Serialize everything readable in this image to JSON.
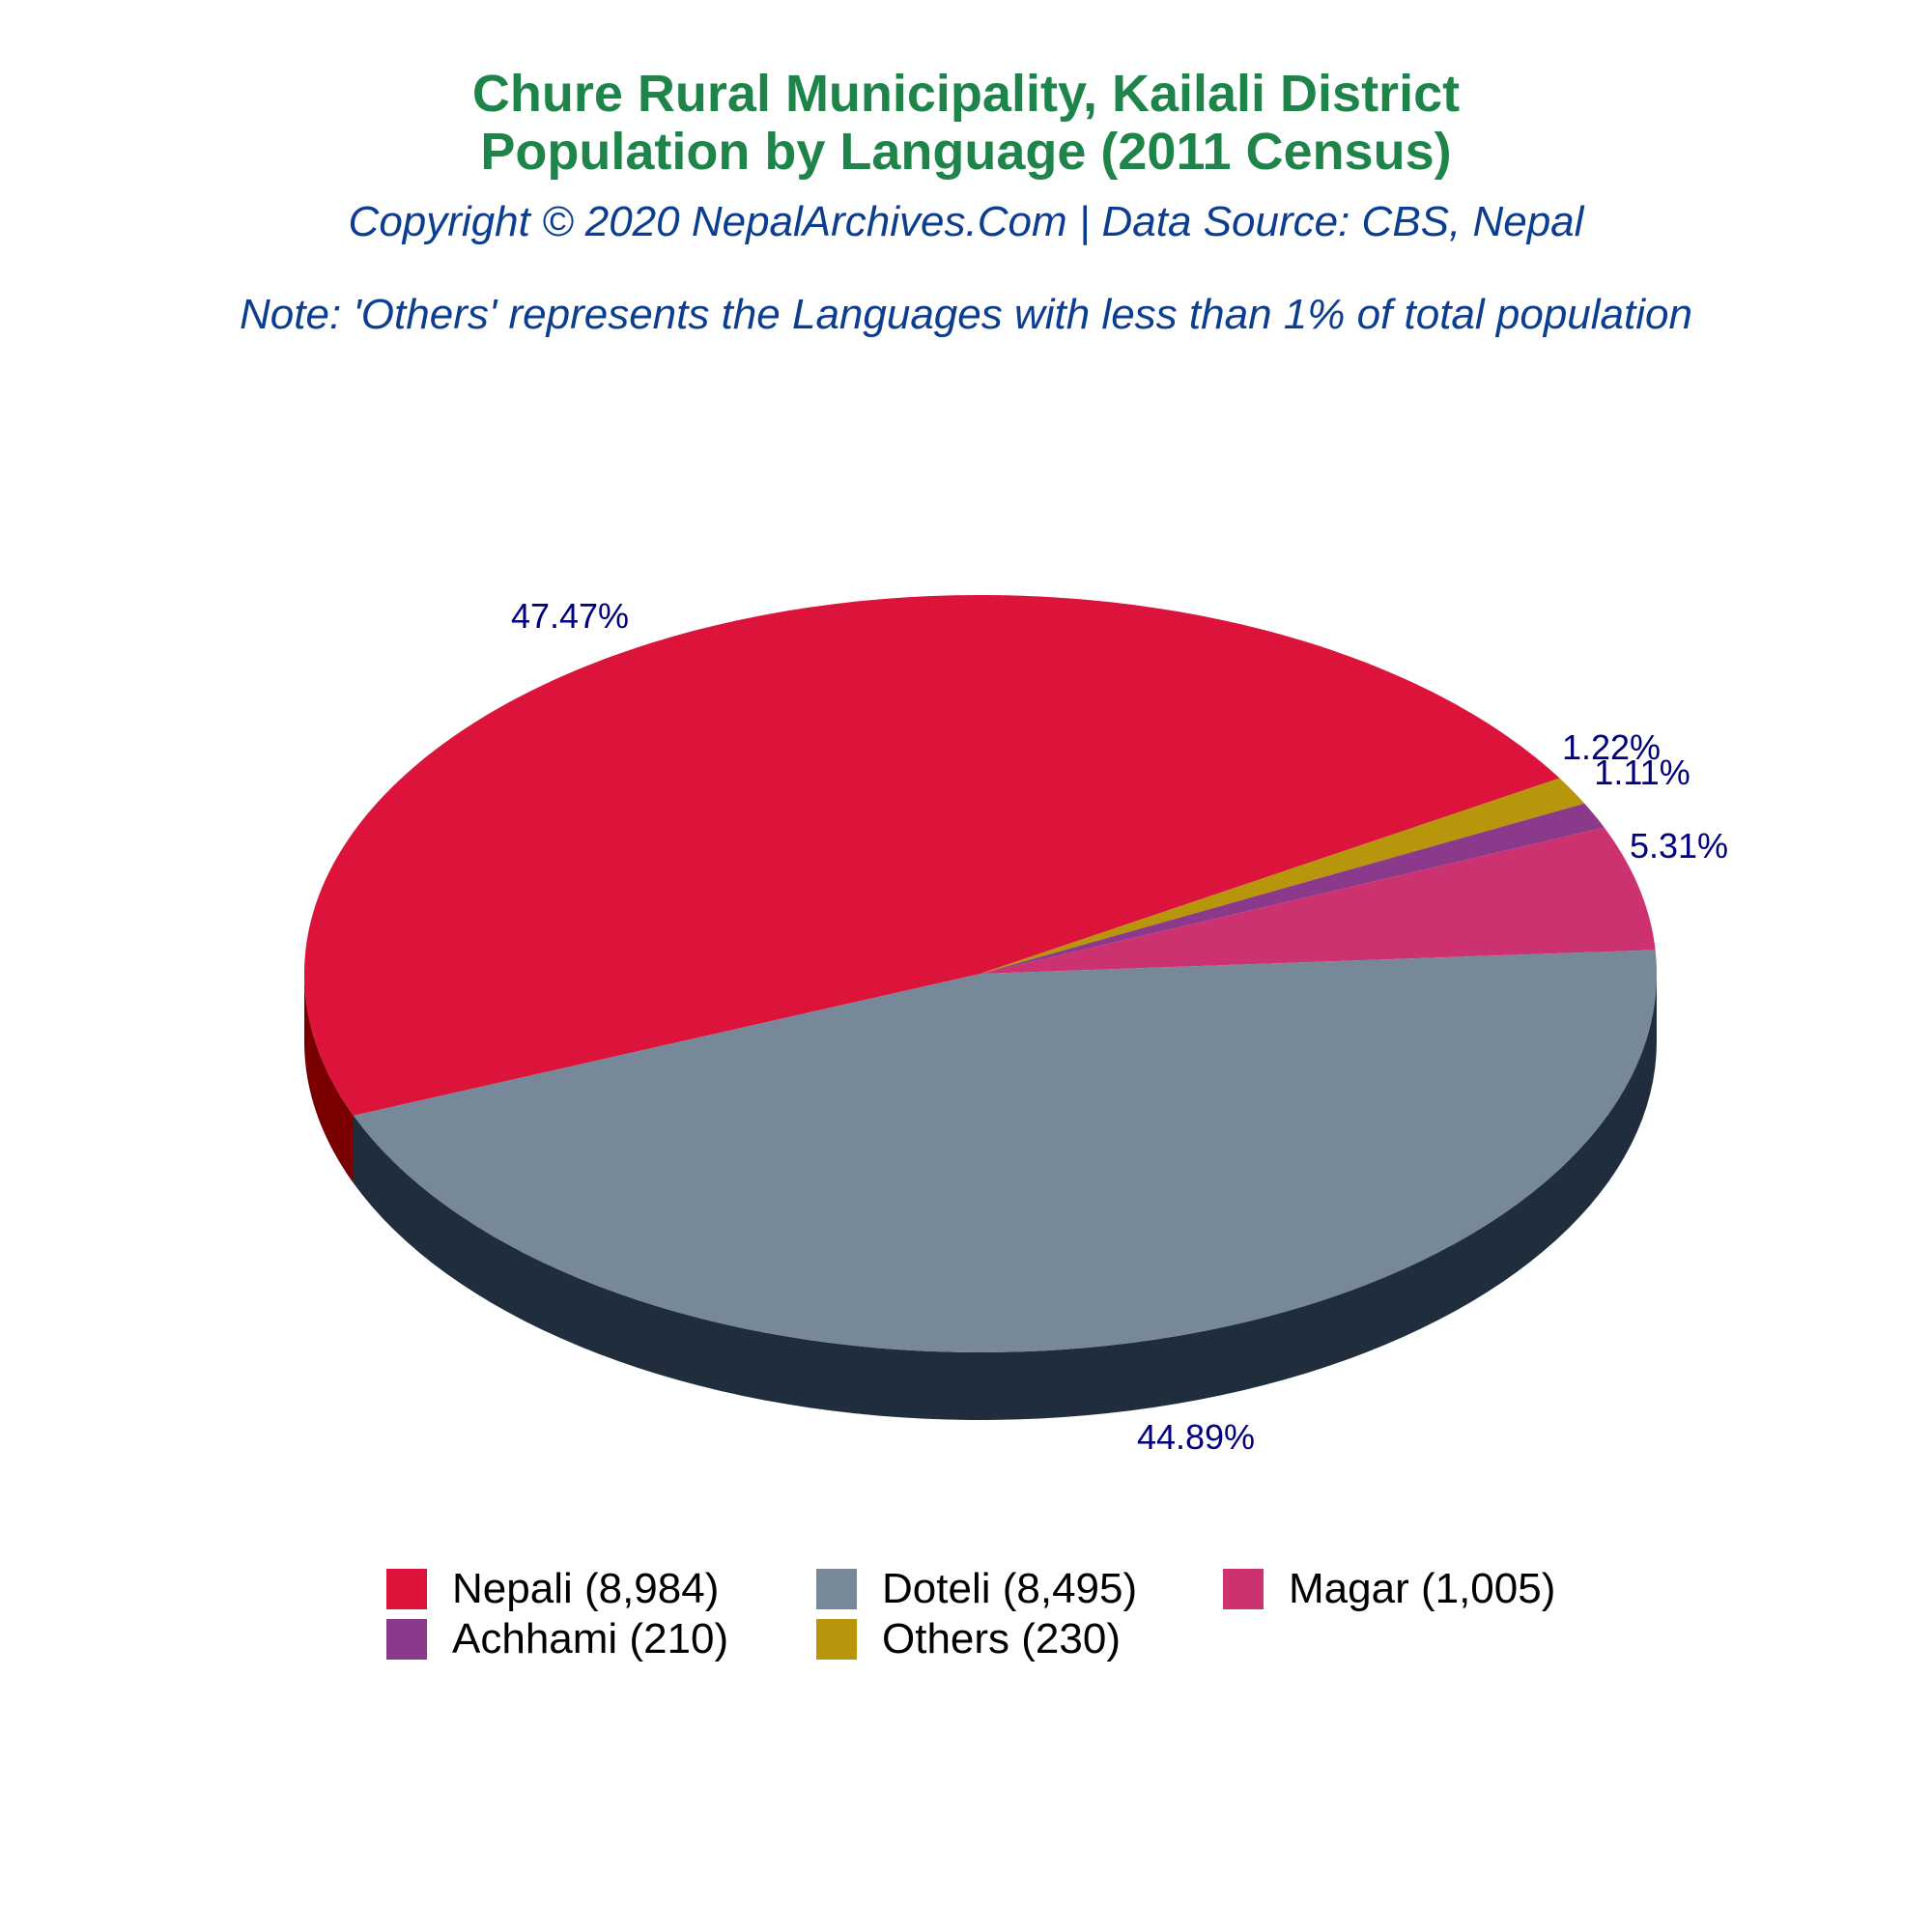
{
  "title_line1": "Chure Rural Municipality, Kailali District",
  "title_line2": "Population by Language (2011 Census)",
  "subtitle": "Copyright © 2020 NepalArchives.Com | Data Source: CBS, Nepal",
  "note": "Note: 'Others' represents the Languages with less than 1% of total population",
  "chart_data": {
    "type": "pie",
    "style": "3d-tilted",
    "categories": [
      "Nepali",
      "Doteli",
      "Magar",
      "Achhami",
      "Others"
    ],
    "values": [
      8984,
      8495,
      1005,
      210,
      230
    ],
    "percent_labels": [
      "47.47%",
      "44.89%",
      "5.31%",
      "1.11%",
      "1.22%"
    ],
    "colors": [
      "#dc143c",
      "#778899",
      "#cc3170",
      "#8b3a8b",
      "#b8960c"
    ],
    "side_colors": [
      "#7a0000",
      "#1f2d3d",
      "#7a1d44",
      "#4e1f4e",
      "#6e5a07"
    ],
    "legend": [
      {
        "label": "Nepali (8,984)",
        "color": "#dc143c"
      },
      {
        "label": "Doteli (8,495)",
        "color": "#778899"
      },
      {
        "label": "Magar (1,005)",
        "color": "#cc3170"
      },
      {
        "label": "Achhami (210)",
        "color": "#8b3a8b"
      },
      {
        "label": "Others (230)",
        "color": "#b8960c"
      }
    ],
    "legend_position": "bottom",
    "label_color": "#000080"
  }
}
